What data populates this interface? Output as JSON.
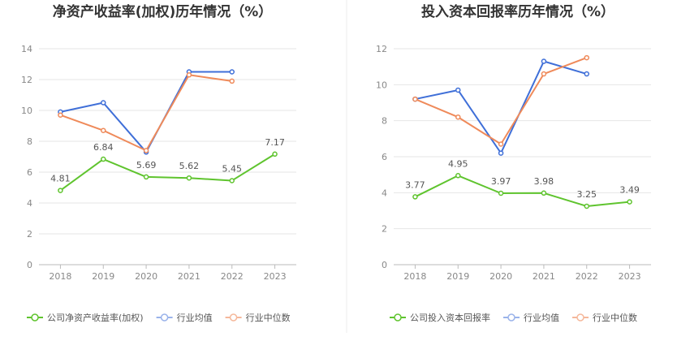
{
  "colors": {
    "company": "#5fc42e",
    "avg": "#3f6fd8",
    "median": "#ef8a5a",
    "legend_avg": "#9ab3ea",
    "legend_median": "#f5b89b",
    "grid": "#e6e6e6",
    "axis": "#bbbbbb"
  },
  "chart_data": [
    {
      "type": "line",
      "title": "净资产收益率(加权)历年情况（%）",
      "xlabel": "",
      "ylabel": "",
      "categories": [
        "2018",
        "2019",
        "2020",
        "2021",
        "2022",
        "2023"
      ],
      "ylim": [
        0,
        14
      ],
      "yticks": [
        0,
        2,
        4,
        6,
        8,
        10,
        12,
        14
      ],
      "grid": true,
      "legend_position": "bottom",
      "series": [
        {
          "name": "公司净资产收益率(加权)",
          "role": "company",
          "values": [
            4.81,
            6.84,
            5.69,
            5.62,
            5.45,
            7.17
          ],
          "labels": [
            "4.81",
            "6.84",
            "5.69",
            "5.62",
            "5.45",
            "7.17"
          ]
        },
        {
          "name": "行业均值",
          "role": "avg",
          "values": [
            9.9,
            10.5,
            7.3,
            12.5,
            12.5,
            null
          ]
        },
        {
          "name": "行业中位数",
          "role": "median",
          "values": [
            9.7,
            8.7,
            7.4,
            12.3,
            11.9,
            null
          ]
        }
      ]
    },
    {
      "type": "line",
      "title": "投入资本回报率历年情况（%）",
      "xlabel": "",
      "ylabel": "",
      "categories": [
        "2018",
        "2019",
        "2020",
        "2021",
        "2022",
        "2023"
      ],
      "ylim": [
        0,
        12
      ],
      "yticks": [
        0,
        2,
        4,
        6,
        8,
        10,
        12
      ],
      "grid": true,
      "legend_position": "bottom",
      "series": [
        {
          "name": "公司投入资本回报率",
          "role": "company",
          "values": [
            3.77,
            4.95,
            3.97,
            3.98,
            3.25,
            3.49
          ],
          "labels": [
            "3.77",
            "4.95",
            "3.97",
            "3.98",
            "3.25",
            "3.49"
          ]
        },
        {
          "name": "行业均值",
          "role": "avg",
          "values": [
            9.2,
            9.7,
            6.2,
            11.3,
            10.6,
            null
          ]
        },
        {
          "name": "行业中位数",
          "role": "median",
          "values": [
            9.2,
            8.2,
            6.7,
            10.6,
            11.5,
            null
          ]
        }
      ]
    }
  ]
}
